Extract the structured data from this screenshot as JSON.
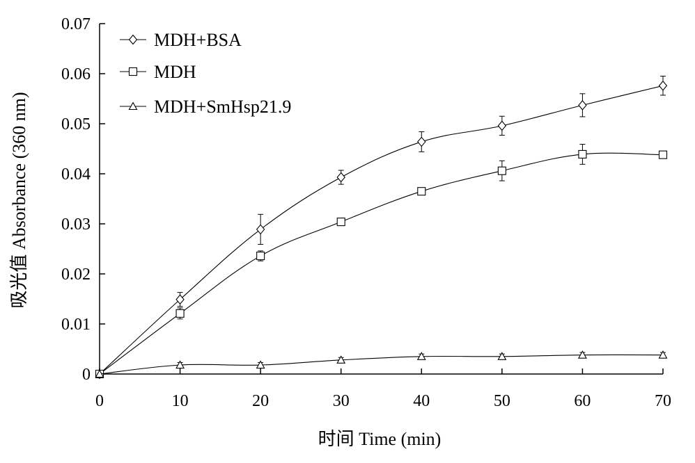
{
  "chart_data": {
    "type": "line",
    "title": "",
    "xlabel": "时间 Time (min)",
    "ylabel": "吸光值 Absorbance (360 nm)",
    "xlim": [
      0,
      70
    ],
    "ylim": [
      0,
      0.07
    ],
    "x_ticks": [
      "0",
      "10",
      "20",
      "30",
      "40",
      "50",
      "60",
      "70"
    ],
    "y_ticks": [
      "0",
      "0.01",
      "0.02",
      "0.03",
      "0.04",
      "0.05",
      "0.06",
      "0.07"
    ],
    "grid": false,
    "legend_position": "top-left",
    "x": [
      0,
      10,
      20,
      30,
      40,
      50,
      60,
      70
    ],
    "series": [
      {
        "name": "MDH+BSA",
        "marker": "diamond",
        "values": [
          0,
          0.0149,
          0.0289,
          0.0393,
          0.0464,
          0.0496,
          0.0537,
          0.0576
        ],
        "errors": [
          0,
          0.0014,
          0.003,
          0.0014,
          0.002,
          0.0019,
          0.0023,
          0.0019
        ]
      },
      {
        "name": "MDH",
        "marker": "square",
        "values": [
          0,
          0.0121,
          0.0236,
          0.0304,
          0.0365,
          0.0406,
          0.0439,
          0.0438
        ],
        "errors": [
          0,
          0.0011,
          0.001,
          0.0006,
          0.0005,
          0.002,
          0.002,
          0.0007
        ]
      },
      {
        "name": "MDH+SmHsp21.9",
        "marker": "triangle",
        "values": [
          0,
          0.0018,
          0.0018,
          0.0028,
          0.0035,
          0.0035,
          0.0038,
          0.0038
        ],
        "errors": [
          0,
          0.0005,
          0.0005,
          0.0005,
          0.0005,
          0.0005,
          0.0005,
          0.0005
        ]
      }
    ]
  }
}
